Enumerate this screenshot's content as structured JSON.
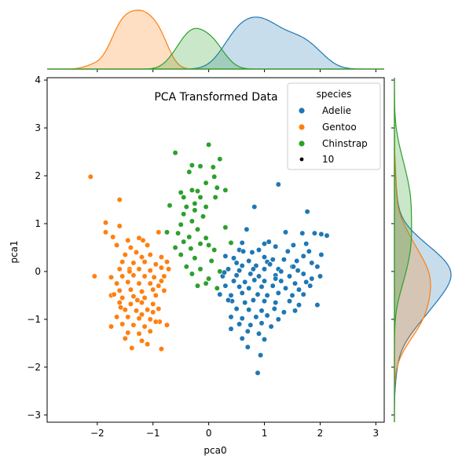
{
  "chart_data": {
    "type": "scatter",
    "title": "PCA Transformed Data",
    "xlabel": "pca0",
    "ylabel": "pca1",
    "xlim": [
      -2.9,
      3.15
    ],
    "ylim": [
      -3.15,
      4.05
    ],
    "xticks": [
      "−2",
      "−1",
      "0",
      "1",
      "2",
      "3"
    ],
    "xtick_values": [
      -2,
      -1,
      0,
      1,
      2,
      3
    ],
    "yticks": [
      "−3",
      "−2",
      "−1",
      "0",
      "1",
      "2",
      "3",
      "4"
    ],
    "ytick_values": [
      -3,
      -2,
      -1,
      0,
      1,
      2,
      3,
      4
    ],
    "grid": false,
    "legend": {
      "title": "species",
      "placement": "upper-right",
      "entries": [
        "Adelie",
        "Gentoo",
        "Chinstrap"
      ],
      "size_label": "10"
    },
    "colors": {
      "Adelie": "#1f77b4",
      "Gentoo": "#ff7f0e",
      "Chinstrap": "#2ca02c"
    },
    "marginals": "kde",
    "series": [
      {
        "name": "Adelie",
        "points": [
          [
            1.25,
            1.82
          ],
          [
            0.82,
            1.35
          ],
          [
            1.77,
            1.25
          ],
          [
            0.68,
            0.88
          ],
          [
            1.38,
            0.82
          ],
          [
            1.9,
            0.8
          ],
          [
            2.12,
            0.75
          ],
          [
            2.02,
            0.78
          ],
          [
            1.68,
            0.8
          ],
          [
            1.08,
            0.62
          ],
          [
            1.0,
            0.58
          ],
          [
            1.2,
            0.52
          ],
          [
            1.52,
            0.55
          ],
          [
            0.55,
            0.45
          ],
          [
            0.62,
            0.42
          ],
          [
            0.78,
            0.4
          ],
          [
            0.9,
            0.45
          ],
          [
            1.42,
            0.42
          ],
          [
            1.75,
            0.58
          ],
          [
            1.8,
            0.42
          ],
          [
            0.3,
            0.32
          ],
          [
            0.45,
            0.28
          ],
          [
            0.72,
            0.22
          ],
          [
            1.0,
            0.3
          ],
          [
            1.05,
            0.2
          ],
          [
            1.15,
            0.25
          ],
          [
            1.35,
            0.25
          ],
          [
            1.58,
            0.22
          ],
          [
            1.7,
            0.32
          ],
          [
            2.02,
            0.35
          ],
          [
            0.5,
            0.18
          ],
          [
            0.6,
            0.12
          ],
          [
            0.85,
            0.12
          ],
          [
            1.1,
            0.15
          ],
          [
            1.5,
            0.1
          ],
          [
            1.85,
            0.18
          ],
          [
            0.35,
            0.05
          ],
          [
            0.55,
            0.02
          ],
          [
            0.8,
            0.05
          ],
          [
            1.0,
            0.05
          ],
          [
            1.25,
            0.05
          ],
          [
            1.6,
            0.02
          ],
          [
            1.95,
            0.1
          ],
          [
            0.25,
            -0.1
          ],
          [
            0.5,
            -0.08
          ],
          [
            0.75,
            -0.05
          ],
          [
            0.9,
            -0.1
          ],
          [
            1.2,
            -0.08
          ],
          [
            1.45,
            -0.1
          ],
          [
            1.7,
            -0.05
          ],
          [
            1.85,
            -0.15
          ],
          [
            2.0,
            -0.1
          ],
          [
            0.45,
            -0.2
          ],
          [
            0.65,
            -0.22
          ],
          [
            0.82,
            -0.18
          ],
          [
            1.0,
            -0.2
          ],
          [
            1.3,
            -0.2
          ],
          [
            1.55,
            -0.25
          ],
          [
            1.75,
            -0.22
          ],
          [
            0.3,
            -0.3
          ],
          [
            0.55,
            -0.32
          ],
          [
            0.72,
            -0.35
          ],
          [
            0.95,
            -0.32
          ],
          [
            1.15,
            -0.3
          ],
          [
            1.38,
            -0.35
          ],
          [
            1.62,
            -0.38
          ],
          [
            1.82,
            -0.3
          ],
          [
            0.2,
            -0.48
          ],
          [
            0.4,
            -0.5
          ],
          [
            0.6,
            -0.45
          ],
          [
            0.88,
            -0.48
          ],
          [
            1.05,
            -0.5
          ],
          [
            1.25,
            -0.45
          ],
          [
            1.5,
            -0.5
          ],
          [
            1.7,
            -0.48
          ],
          [
            0.42,
            -0.62
          ],
          [
            0.65,
            -0.65
          ],
          [
            0.8,
            -0.6
          ],
          [
            1.0,
            -0.62
          ],
          [
            1.2,
            -0.65
          ],
          [
            1.45,
            -0.62
          ],
          [
            1.62,
            -0.7
          ],
          [
            1.95,
            -0.7
          ],
          [
            0.5,
            -0.78
          ],
          [
            0.72,
            -0.8
          ],
          [
            0.95,
            -0.82
          ],
          [
            1.18,
            -0.78
          ],
          [
            1.35,
            -0.85
          ],
          [
            0.4,
            -0.95
          ],
          [
            0.6,
            -0.98
          ],
          [
            0.85,
            -0.95
          ],
          [
            1.05,
            -0.92
          ],
          [
            1.25,
            -1.0
          ],
          [
            0.55,
            -1.1
          ],
          [
            0.75,
            -1.12
          ],
          [
            0.95,
            -1.08
          ],
          [
            1.12,
            -1.15
          ],
          [
            0.4,
            -1.2
          ],
          [
            0.7,
            -1.25
          ],
          [
            0.9,
            -1.3
          ],
          [
            0.6,
            -1.4
          ],
          [
            1.0,
            -1.42
          ],
          [
            0.7,
            -1.58
          ],
          [
            0.93,
            -1.75
          ],
          [
            0.88,
            -2.12
          ],
          [
            1.2,
            -0.15
          ],
          [
            0.35,
            -0.6
          ],
          [
            1.55,
            -0.82
          ],
          [
            0.28,
            -0.02
          ],
          [
            1.3,
            0.0
          ],
          [
            0.6,
            0.6
          ],
          [
            1.52,
            0.1
          ]
        ]
      },
      {
        "name": "Gentoo",
        "points": [
          [
            -2.12,
            1.98
          ],
          [
            -1.6,
            1.5
          ],
          [
            -1.85,
            1.02
          ],
          [
            -1.85,
            0.82
          ],
          [
            -1.6,
            0.95
          ],
          [
            -1.72,
            0.72
          ],
          [
            -1.65,
            0.55
          ],
          [
            -1.45,
            0.65
          ],
          [
            -1.25,
            0.7
          ],
          [
            -1.18,
            0.65
          ],
          [
            -1.4,
            0.5
          ],
          [
            -1.1,
            0.55
          ],
          [
            -0.9,
            0.82
          ],
          [
            -1.5,
            0.35
          ],
          [
            -1.3,
            0.4
          ],
          [
            -1.2,
            0.3
          ],
          [
            -1.05,
            0.35
          ],
          [
            -0.85,
            0.3
          ],
          [
            -1.55,
            0.2
          ],
          [
            -1.35,
            0.18
          ],
          [
            -1.15,
            0.2
          ],
          [
            -0.95,
            0.15
          ],
          [
            -0.75,
            0.2
          ],
          [
            -1.6,
            0.05
          ],
          [
            -1.42,
            0.05
          ],
          [
            -1.25,
            0.05
          ],
          [
            -1.05,
            0.02
          ],
          [
            -0.85,
            0.08
          ],
          [
            -0.72,
            0.05
          ],
          [
            -2.05,
            -0.1
          ],
          [
            -1.75,
            -0.12
          ],
          [
            -1.55,
            -0.1
          ],
          [
            -1.35,
            -0.08
          ],
          [
            -1.15,
            -0.1
          ],
          [
            -0.98,
            -0.12
          ],
          [
            -0.8,
            -0.1
          ],
          [
            -1.65,
            -0.25
          ],
          [
            -1.45,
            -0.22
          ],
          [
            -1.25,
            -0.25
          ],
          [
            -1.05,
            -0.25
          ],
          [
            -0.85,
            -0.2
          ],
          [
            -1.6,
            -0.4
          ],
          [
            -1.4,
            -0.38
          ],
          [
            -1.2,
            -0.42
          ],
          [
            -1.0,
            -0.38
          ],
          [
            -0.8,
            -0.4
          ],
          [
            -1.75,
            -0.5
          ],
          [
            -1.55,
            -0.55
          ],
          [
            -1.35,
            -0.52
          ],
          [
            -1.15,
            -0.55
          ],
          [
            -0.95,
            -0.5
          ],
          [
            -1.6,
            -0.65
          ],
          [
            -1.4,
            -0.68
          ],
          [
            -1.2,
            -0.65
          ],
          [
            -1.0,
            -0.68
          ],
          [
            -1.5,
            -0.8
          ],
          [
            -1.3,
            -0.82
          ],
          [
            -1.1,
            -0.8
          ],
          [
            -0.9,
            -0.78
          ],
          [
            -1.65,
            -0.95
          ],
          [
            -1.45,
            -0.95
          ],
          [
            -1.25,
            -0.98
          ],
          [
            -1.05,
            -1.0
          ],
          [
            -0.88,
            -1.05
          ],
          [
            -1.55,
            -1.1
          ],
          [
            -1.35,
            -1.12
          ],
          [
            -1.15,
            -1.15
          ],
          [
            -0.95,
            -1.05
          ],
          [
            -0.75,
            -1.12
          ],
          [
            -1.45,
            -1.28
          ],
          [
            -1.25,
            -1.3
          ],
          [
            -1.05,
            -1.25
          ],
          [
            -1.5,
            -1.4
          ],
          [
            -1.2,
            -1.45
          ],
          [
            -1.38,
            -1.6
          ],
          [
            -1.1,
            -1.52
          ],
          [
            -0.85,
            -1.62
          ],
          [
            -1.7,
            -0.48
          ],
          [
            -1.28,
            -0.6
          ],
          [
            -1.0,
            -0.85
          ],
          [
            -1.42,
            0.0
          ],
          [
            -0.9,
            -0.3
          ],
          [
            -1.58,
            -0.75
          ],
          [
            -1.75,
            -1.15
          ],
          [
            -1.2,
            -0.9
          ]
        ]
      },
      {
        "name": "Chinstrap",
        "points": [
          [
            -0.6,
            2.48
          ],
          [
            0.0,
            2.65
          ],
          [
            -0.3,
            2.22
          ],
          [
            0.2,
            2.35
          ],
          [
            -0.15,
            2.2
          ],
          [
            0.08,
            2.18
          ],
          [
            -0.35,
            2.08
          ],
          [
            0.1,
            1.98
          ],
          [
            -0.05,
            1.85
          ],
          [
            0.15,
            1.75
          ],
          [
            -0.5,
            1.65
          ],
          [
            -0.3,
            1.7
          ],
          [
            -0.2,
            1.68
          ],
          [
            0.3,
            1.7
          ],
          [
            -0.45,
            1.55
          ],
          [
            -0.15,
            1.55
          ],
          [
            0.12,
            1.55
          ],
          [
            -0.25,
            1.42
          ],
          [
            -0.4,
            1.35
          ],
          [
            -0.05,
            1.35
          ],
          [
            -0.7,
            1.38
          ],
          [
            -0.25,
            1.28
          ],
          [
            -0.45,
            1.2
          ],
          [
            -0.1,
            1.15
          ],
          [
            -0.3,
            1.05
          ],
          [
            -0.5,
            0.98
          ],
          [
            0.3,
            0.92
          ],
          [
            -0.2,
            0.88
          ],
          [
            -0.75,
            0.82
          ],
          [
            -0.55,
            0.8
          ],
          [
            -0.35,
            0.72
          ],
          [
            -0.05,
            0.7
          ],
          [
            -0.45,
            0.62
          ],
          [
            -0.15,
            0.58
          ],
          [
            0.0,
            0.55
          ],
          [
            -0.6,
            0.5
          ],
          [
            -0.32,
            0.48
          ],
          [
            0.1,
            0.45
          ],
          [
            -0.5,
            0.35
          ],
          [
            -0.25,
            0.28
          ],
          [
            0.05,
            0.22
          ],
          [
            -0.4,
            0.1
          ],
          [
            -0.15,
            0.05
          ],
          [
            0.2,
            0.0
          ],
          [
            -0.3,
            -0.05
          ],
          [
            0.0,
            -0.15
          ],
          [
            -0.2,
            -0.3
          ],
          [
            0.15,
            -0.35
          ],
          [
            0.4,
            0.6
          ],
          [
            -0.05,
            -0.25
          ]
        ]
      }
    ]
  }
}
